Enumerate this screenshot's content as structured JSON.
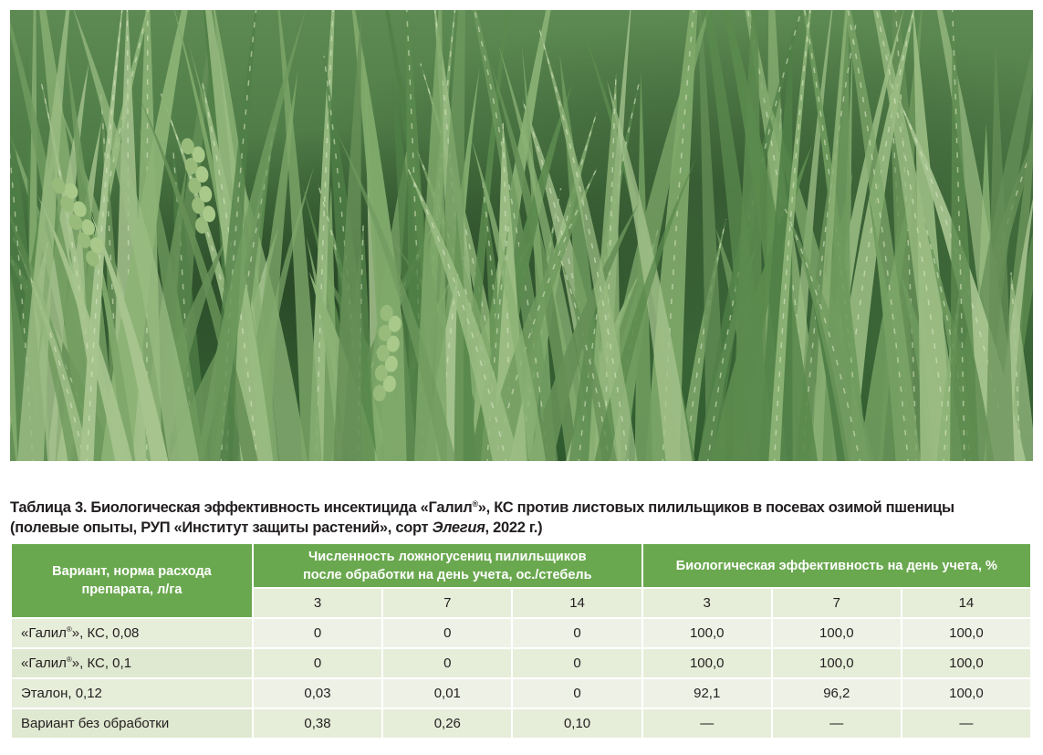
{
  "caption": {
    "line1_prefix": "Таблица 3. Биологическая эффективность инсектицида «Галил",
    "reg": "®",
    "line1_suffix": "», КС против листовых пилильщиков в посевах озимой пшеницы",
    "line2_prefix": "(полевые опыты, РУП «Институт защиты растений», сорт ",
    "line2_cultivar": "Элегия",
    "line2_suffix": ", 2022 г.)"
  },
  "table": {
    "col_variant": "Вариант, норма расхода препарата, л/га",
    "group_count": "Численность ложногусениц пилильщиков после обработки на день учета, ос./стебель",
    "group_eff": "Биологическая эффективность на день учета, %",
    "days": [
      "3",
      "7",
      "14",
      "3",
      "7",
      "14"
    ],
    "rows": [
      {
        "pre": "«Галил",
        "reg": "®",
        "post": "», КС, 0,08",
        "values": [
          "0",
          "0",
          "0",
          "100,0",
          "100,0",
          "100,0"
        ]
      },
      {
        "pre": "«Галил",
        "reg": "®",
        "post": "», КС, 0,1",
        "values": [
          "0",
          "0",
          "0",
          "100,0",
          "100,0",
          "100,0"
        ]
      },
      {
        "pre": "Эталон, 0,12",
        "reg": "",
        "post": "",
        "values": [
          "0,03",
          "0,01",
          "0",
          "92,1",
          "96,2",
          "100,0"
        ]
      },
      {
        "pre": "Вариант без обработки",
        "reg": "",
        "post": "",
        "values": [
          "0,38",
          "0,26",
          "0,10",
          "—",
          "—",
          "—"
        ]
      }
    ]
  },
  "colors": {
    "header_green": "#6aa84f",
    "cell_light": "#e6edd9"
  }
}
